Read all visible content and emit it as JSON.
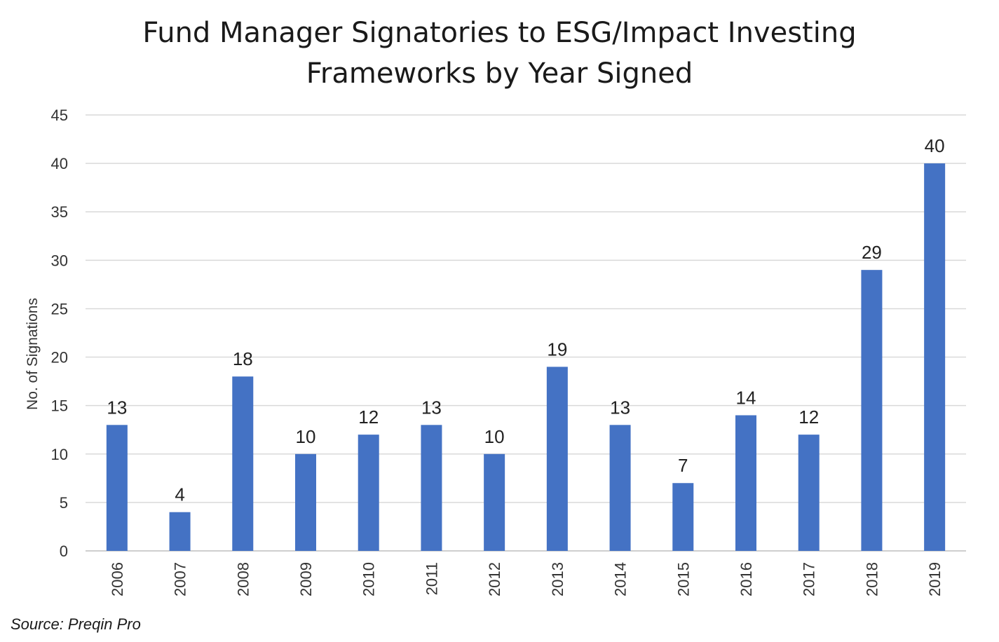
{
  "chart_data": {
    "type": "bar",
    "title_lines": [
      "Fund Manager Signatories to ESG/Impact Investing",
      "Frameworks by Year Signed"
    ],
    "xlabel": "",
    "ylabel": "No. of Signations",
    "categories": [
      "2006",
      "2007",
      "2008",
      "2009",
      "2010",
      "2011",
      "2012",
      "2013",
      "2014",
      "2015",
      "2016",
      "2017",
      "2018",
      "2019"
    ],
    "values": [
      13,
      4,
      18,
      10,
      12,
      13,
      10,
      19,
      13,
      7,
      14,
      12,
      29,
      40
    ],
    "ylim": [
      0,
      45
    ],
    "yticks": [
      0,
      5,
      10,
      15,
      20,
      25,
      30,
      35,
      40,
      45
    ],
    "grid": true,
    "legend": "none",
    "bar_color": "#4472C4",
    "data_labels": true
  },
  "source": "Source: Preqin Pro"
}
